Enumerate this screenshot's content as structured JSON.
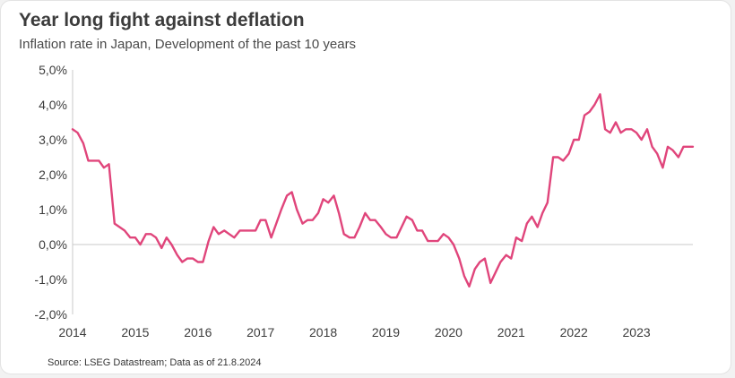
{
  "title": "Year long fight against deflation",
  "subtitle": "Inflation rate in Japan, Development of the past 10 years",
  "source": "Source: LSEG Datastream; Data as of 21.8.2024",
  "colors": {
    "line": "#e0457b",
    "axis": "#c8c8c8",
    "text": "#3c3c3c"
  },
  "chart_data": {
    "type": "line",
    "title": "Year long fight against deflation",
    "subtitle": "Inflation rate in Japan, Development of the past 10 years",
    "xlabel": "",
    "ylabel": "",
    "ylim": [
      -2,
      5
    ],
    "xlim": [
      2014.0,
      2023.9
    ],
    "yticks": [
      -2,
      -1,
      0,
      1,
      2,
      3,
      4,
      5
    ],
    "ytick_labels": [
      "-2,0%",
      "-1,0%",
      "0,0%",
      "1,0%",
      "2,0%",
      "3,0%",
      "4,0%",
      "5,0%"
    ],
    "xticks": [
      2014,
      2015,
      2016,
      2017,
      2018,
      2019,
      2020,
      2021,
      2022,
      2023
    ],
    "xtick_labels": [
      "2014",
      "2015",
      "2016",
      "2017",
      "2018",
      "2019",
      "2020",
      "2021",
      "2022",
      "2023"
    ],
    "grid": false,
    "series": [
      {
        "values": [
          [
            2014.0,
            3.3
          ],
          [
            2014.08,
            3.2
          ],
          [
            2014.17,
            2.9
          ],
          [
            2014.25,
            2.4
          ],
          [
            2014.33,
            2.4
          ],
          [
            2014.42,
            2.4
          ],
          [
            2014.5,
            2.2
          ],
          [
            2014.58,
            2.3
          ],
          [
            2014.67,
            0.6
          ],
          [
            2014.75,
            0.5
          ],
          [
            2014.83,
            0.4
          ],
          [
            2014.92,
            0.2
          ],
          [
            2015.0,
            0.2
          ],
          [
            2015.08,
            0.0
          ],
          [
            2015.17,
            0.3
          ],
          [
            2015.25,
            0.3
          ],
          [
            2015.33,
            0.2
          ],
          [
            2015.42,
            -0.1
          ],
          [
            2015.5,
            0.2
          ],
          [
            2015.58,
            0.0
          ],
          [
            2015.67,
            -0.3
          ],
          [
            2015.75,
            -0.5
          ],
          [
            2015.83,
            -0.4
          ],
          [
            2015.92,
            -0.4
          ],
          [
            2016.0,
            -0.5
          ],
          [
            2016.08,
            -0.5
          ],
          [
            2016.17,
            0.1
          ],
          [
            2016.25,
            0.5
          ],
          [
            2016.33,
            0.3
          ],
          [
            2016.42,
            0.4
          ],
          [
            2016.5,
            0.3
          ],
          [
            2016.58,
            0.2
          ],
          [
            2016.67,
            0.4
          ],
          [
            2016.75,
            0.4
          ],
          [
            2016.83,
            0.4
          ],
          [
            2016.92,
            0.4
          ],
          [
            2017.0,
            0.7
          ],
          [
            2017.08,
            0.7
          ],
          [
            2017.17,
            0.2
          ],
          [
            2017.25,
            0.6
          ],
          [
            2017.33,
            1.0
          ],
          [
            2017.42,
            1.4
          ],
          [
            2017.5,
            1.5
          ],
          [
            2017.58,
            1.0
          ],
          [
            2017.67,
            0.6
          ],
          [
            2017.75,
            0.7
          ],
          [
            2017.83,
            0.7
          ],
          [
            2017.92,
            0.9
          ],
          [
            2018.0,
            1.3
          ],
          [
            2018.08,
            1.2
          ],
          [
            2018.17,
            1.4
          ],
          [
            2018.25,
            0.9
          ],
          [
            2018.33,
            0.3
          ],
          [
            2018.42,
            0.2
          ],
          [
            2018.5,
            0.2
          ],
          [
            2018.58,
            0.5
          ],
          [
            2018.67,
            0.9
          ],
          [
            2018.75,
            0.7
          ],
          [
            2018.83,
            0.7
          ],
          [
            2018.92,
            0.5
          ],
          [
            2019.0,
            0.3
          ],
          [
            2019.08,
            0.2
          ],
          [
            2019.17,
            0.2
          ],
          [
            2019.25,
            0.5
          ],
          [
            2019.33,
            0.8
          ],
          [
            2019.42,
            0.7
          ],
          [
            2019.5,
            0.4
          ],
          [
            2019.58,
            0.4
          ],
          [
            2019.67,
            0.1
          ],
          [
            2019.75,
            0.1
          ],
          [
            2019.83,
            0.1
          ],
          [
            2019.92,
            0.3
          ],
          [
            2020.0,
            0.2
          ],
          [
            2020.08,
            0.0
          ],
          [
            2020.17,
            -0.4
          ],
          [
            2020.25,
            -0.9
          ],
          [
            2020.33,
            -1.2
          ],
          [
            2020.42,
            -0.7
          ],
          [
            2020.5,
            -0.5
          ],
          [
            2020.58,
            -0.4
          ],
          [
            2020.67,
            -1.1
          ],
          [
            2020.75,
            -0.8
          ],
          [
            2020.83,
            -0.5
          ],
          [
            2020.92,
            -0.3
          ],
          [
            2021.0,
            -0.4
          ],
          [
            2021.08,
            0.2
          ],
          [
            2021.17,
            0.1
          ],
          [
            2021.25,
            0.6
          ],
          [
            2021.33,
            0.8
          ],
          [
            2021.42,
            0.5
          ],
          [
            2021.5,
            0.9
          ],
          [
            2021.58,
            1.2
          ],
          [
            2021.67,
            2.5
          ],
          [
            2021.75,
            2.5
          ],
          [
            2021.83,
            2.4
          ],
          [
            2021.92,
            2.6
          ],
          [
            2022.0,
            3.0
          ],
          [
            2022.08,
            3.0
          ],
          [
            2022.17,
            3.7
          ],
          [
            2022.25,
            3.8
          ],
          [
            2022.33,
            4.0
          ],
          [
            2022.42,
            4.3
          ],
          [
            2022.5,
            3.3
          ],
          [
            2022.58,
            3.2
          ],
          [
            2022.67,
            3.5
          ],
          [
            2022.75,
            3.2
          ],
          [
            2022.83,
            3.3
          ],
          [
            2022.92,
            3.3
          ],
          [
            2023.0,
            3.2
          ],
          [
            2023.08,
            3.0
          ],
          [
            2023.17,
            3.3
          ],
          [
            2023.25,
            2.8
          ],
          [
            2023.33,
            2.6
          ],
          [
            2023.42,
            2.2
          ],
          [
            2023.5,
            2.8
          ],
          [
            2023.58,
            2.7
          ],
          [
            2023.67,
            2.5
          ],
          [
            2023.75,
            2.8
          ],
          [
            2023.83,
            2.8
          ],
          [
            2023.9,
            2.8
          ]
        ]
      }
    ]
  }
}
